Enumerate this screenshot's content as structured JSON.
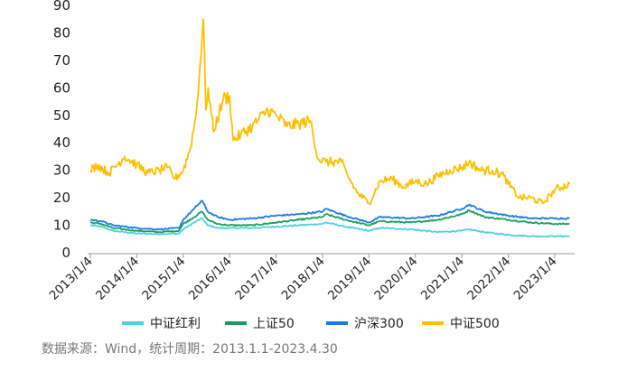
{
  "chart_data": {
    "type": "line",
    "title": "",
    "xlabel": "",
    "ylabel": "",
    "ylim": [
      0,
      90
    ],
    "yticks": [
      0,
      10,
      20,
      30,
      40,
      50,
      60,
      70,
      80,
      90
    ],
    "x_range": [
      "2013-01-01",
      "2023-04-30"
    ],
    "x_ticks": [
      "2013/1/4",
      "2014/1/4",
      "2015/1/4",
      "2016/1/4",
      "2017/1/4",
      "2018/1/4",
      "2019/1/4",
      "2020/1/4",
      "2021/1/4",
      "2022/1/4",
      "2023/1/4"
    ],
    "grid": false,
    "legend_position": "bottom",
    "series": [
      {
        "name": "中证红利",
        "color": "#4fd0e0",
        "points": [
          [
            "2013-01-04",
            10
          ],
          [
            "2013-04-01",
            9.5
          ],
          [
            "2013-07-01",
            8
          ],
          [
            "2014-01-04",
            7
          ],
          [
            "2014-07-01",
            6.8
          ],
          [
            "2014-12-01",
            7
          ],
          [
            "2015-01-04",
            8.5
          ],
          [
            "2015-04-01",
            11
          ],
          [
            "2015-06-01",
            12.5
          ],
          [
            "2015-07-15",
            10
          ],
          [
            "2015-10-01",
            9
          ],
          [
            "2016-01-04",
            9
          ],
          [
            "2016-07-01",
            9
          ],
          [
            "2017-01-04",
            9.5
          ],
          [
            "2017-07-01",
            10
          ],
          [
            "2018-01-04",
            10.5
          ],
          [
            "2018-02-01",
            11
          ],
          [
            "2018-07-01",
            9.5
          ],
          [
            "2019-01-04",
            8
          ],
          [
            "2019-04-01",
            9
          ],
          [
            "2019-12-01",
            8.5
          ],
          [
            "2020-07-01",
            7.5
          ],
          [
            "2021-01-04",
            8
          ],
          [
            "2021-03-01",
            8.5
          ],
          [
            "2021-07-01",
            7.5
          ],
          [
            "2022-01-04",
            6.5
          ],
          [
            "2022-07-01",
            6
          ],
          [
            "2023-01-04",
            6
          ],
          [
            "2023-04-30",
            6
          ]
        ]
      },
      {
        "name": "上证50",
        "color": "#1a9e5c",
        "points": [
          [
            "2013-01-04",
            11
          ],
          [
            "2013-04-01",
            10.5
          ],
          [
            "2013-07-01",
            9
          ],
          [
            "2014-01-04",
            8
          ],
          [
            "2014-07-01",
            7.5
          ],
          [
            "2014-12-01",
            8
          ],
          [
            "2015-01-04",
            10.5
          ],
          [
            "2015-04-01",
            13
          ],
          [
            "2015-06-01",
            15
          ],
          [
            "2015-07-15",
            12
          ],
          [
            "2015-10-01",
            10.5
          ],
          [
            "2016-01-04",
            10
          ],
          [
            "2016-07-01",
            10
          ],
          [
            "2017-01-04",
            11
          ],
          [
            "2017-07-01",
            12
          ],
          [
            "2018-01-04",
            13
          ],
          [
            "2018-02-01",
            14
          ],
          [
            "2018-07-01",
            12
          ],
          [
            "2019-01-04",
            10
          ],
          [
            "2019-04-01",
            11.5
          ],
          [
            "2019-12-01",
            11
          ],
          [
            "2020-07-01",
            12
          ],
          [
            "2021-01-04",
            14
          ],
          [
            "2021-03-01",
            15.5
          ],
          [
            "2021-07-01",
            13
          ],
          [
            "2022-01-04",
            12
          ],
          [
            "2022-07-01",
            11
          ],
          [
            "2023-01-04",
            10.5
          ],
          [
            "2023-04-30",
            10.5
          ]
        ]
      },
      {
        "name": "沪深300",
        "color": "#1c7ae6",
        "points": [
          [
            "2013-01-04",
            12
          ],
          [
            "2013-04-01",
            11.5
          ],
          [
            "2013-07-01",
            10
          ],
          [
            "2014-01-04",
            9
          ],
          [
            "2014-07-01",
            8.5
          ],
          [
            "2014-12-01",
            9
          ],
          [
            "2015-01-04",
            12
          ],
          [
            "2015-04-01",
            16
          ],
          [
            "2015-06-01",
            19
          ],
          [
            "2015-07-15",
            15
          ],
          [
            "2015-10-01",
            13
          ],
          [
            "2016-01-04",
            12
          ],
          [
            "2016-07-01",
            12.5
          ],
          [
            "2017-01-04",
            13.5
          ],
          [
            "2017-07-01",
            14
          ],
          [
            "2018-01-04",
            15
          ],
          [
            "2018-02-01",
            16
          ],
          [
            "2018-07-01",
            13.5
          ],
          [
            "2019-01-04",
            11
          ],
          [
            "2019-04-01",
            13
          ],
          [
            "2019-12-01",
            12.5
          ],
          [
            "2020-07-01",
            13.5
          ],
          [
            "2021-01-04",
            16
          ],
          [
            "2021-03-01",
            17.5
          ],
          [
            "2021-07-01",
            15
          ],
          [
            "2022-01-04",
            13.5
          ],
          [
            "2022-07-01",
            12.5
          ],
          [
            "2023-01-04",
            12.5
          ],
          [
            "2023-04-30",
            12.5
          ]
        ]
      },
      {
        "name": "中证500",
        "color": "#ffbf00",
        "points": [
          [
            "2013-01-04",
            30
          ],
          [
            "2013-03-01",
            32
          ],
          [
            "2013-06-01",
            29
          ],
          [
            "2013-10-01",
            35
          ],
          [
            "2014-01-04",
            32
          ],
          [
            "2014-04-01",
            29
          ],
          [
            "2014-07-01",
            30
          ],
          [
            "2014-09-01",
            31
          ],
          [
            "2014-11-01",
            27
          ],
          [
            "2015-01-04",
            30
          ],
          [
            "2015-03-01",
            38
          ],
          [
            "2015-04-15",
            50
          ],
          [
            "2015-05-20",
            70
          ],
          [
            "2015-06-12",
            85
          ],
          [
            "2015-07-01",
            52
          ],
          [
            "2015-07-20",
            60
          ],
          [
            "2015-08-30",
            44
          ],
          [
            "2015-11-15",
            56
          ],
          [
            "2016-01-04",
            57
          ],
          [
            "2016-02-01",
            41
          ],
          [
            "2016-04-01",
            43
          ],
          [
            "2016-07-01",
            46
          ],
          [
            "2016-11-01",
            52
          ],
          [
            "2017-01-04",
            50
          ],
          [
            "2017-04-01",
            46
          ],
          [
            "2017-07-01",
            47
          ],
          [
            "2017-10-01",
            48
          ],
          [
            "2017-12-01",
            34
          ],
          [
            "2018-02-01",
            33
          ],
          [
            "2018-06-01",
            33
          ],
          [
            "2018-08-01",
            27
          ],
          [
            "2018-10-01",
            22
          ],
          [
            "2019-01-04",
            18
          ],
          [
            "2019-04-01",
            26
          ],
          [
            "2019-07-01",
            27
          ],
          [
            "2019-10-01",
            24
          ],
          [
            "2020-01-04",
            26
          ],
          [
            "2020-04-01",
            25
          ],
          [
            "2020-07-01",
            28
          ],
          [
            "2020-10-01",
            30
          ],
          [
            "2021-01-04",
            31
          ],
          [
            "2021-03-01",
            33
          ],
          [
            "2021-06-01",
            30
          ],
          [
            "2021-09-01",
            30
          ],
          [
            "2021-12-01",
            28
          ],
          [
            "2022-01-04",
            25
          ],
          [
            "2022-04-01",
            20
          ],
          [
            "2022-07-01",
            20
          ],
          [
            "2022-10-01",
            18
          ],
          [
            "2022-12-01",
            21
          ],
          [
            "2023-01-04",
            23
          ],
          [
            "2023-04-30",
            25
          ]
        ]
      }
    ]
  },
  "footer": {
    "source": "数据来源：Wind，统计周期：2013.1.1-2023.4.30"
  }
}
